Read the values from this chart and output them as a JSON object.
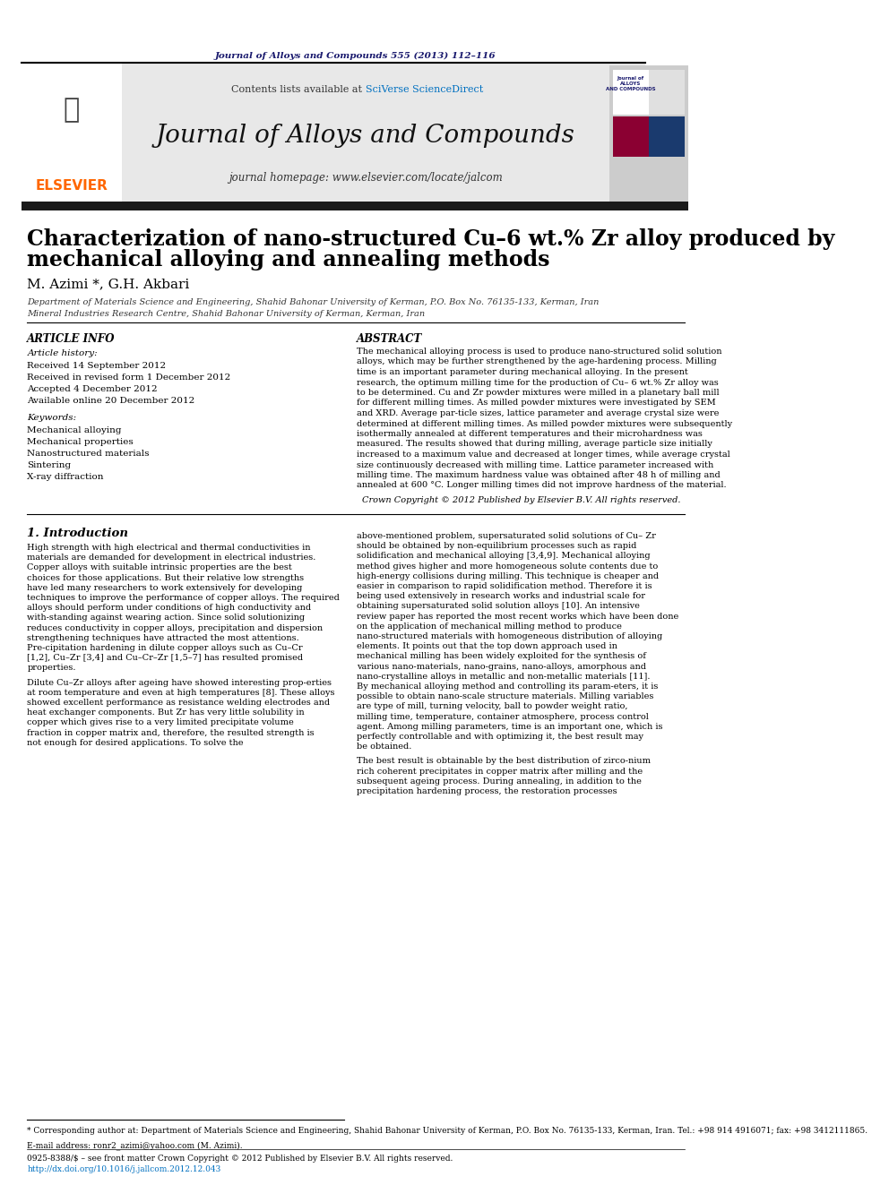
{
  "journal_ref": "Journal of Alloys and Compounds 555 (2013) 112–116",
  "journal_ref_color": "#1a1a6e",
  "contents_line": "Contents lists available at ",
  "sciverse": "SciVerse ScienceDirect",
  "sciverse_color": "#0070c0",
  "journal_title": "Journal of Alloys and Compounds",
  "journal_homepage": "journal homepage: www.elsevier.com/locate/jalcom",
  "paper_title_line1": "Characterization of nano-structured Cu–6 wt.% Zr alloy produced by",
  "paper_title_line2": "mechanical alloying and annealing methods",
  "authors": "M. Azimi *, G.H. Akbari",
  "affil1": "Department of Materials Science and Engineering, Shahid Bahonar University of Kerman, P.O. Box No. 76135-133, Kerman, Iran",
  "affil2": "Mineral Industries Research Centre, Shahid Bahonar University of Kerman, Kerman, Iran",
  "article_info_header": "ARTICLE INFO",
  "abstract_header": "ABSTRACT",
  "article_history_label": "Article history:",
  "received1": "Received 14 September 2012",
  "received2": "Received in revised form 1 December 2012",
  "accepted": "Accepted 4 December 2012",
  "available": "Available online 20 December 2012",
  "keywords_label": "Keywords:",
  "kw1": "Mechanical alloying",
  "kw2": "Mechanical properties",
  "kw3": "Nanostructured materials",
  "kw4": "Sintering",
  "kw5": "X-ray diffraction",
  "abstract_text": "The mechanical alloying process is used to produce nano-structured solid solution alloys, which may be further strengthened by the age-hardening process. Milling time is an important parameter during mechanical alloying. In the present research, the optimum milling time for the production of Cu– 6 wt.% Zr alloy was to be determined. Cu and Zr powder mixtures were milled in a planetary ball mill for different milling times. As milled powder mixtures were investigated by SEM and XRD. Average par-ticle sizes, lattice parameter and average crystal size were determined at different milling times. As milled powder mixtures were subsequently isothermally annealed at different temperatures and their microhardness was measured. The results showed that during milling, average particle size initially increased to a maximum value and decreased at longer times, while average crystal size continuously decreased with milling time. Lattice parameter increased with milling time. The maximum hardness value was obtained after 48 h of milling and annealed at 600 °C. Longer milling times did not improve hardness of the material.",
  "crown_copyright": "Crown Copyright © 2012 Published by Elsevier B.V. All rights reserved.",
  "section1_title": "1. Introduction",
  "intro_col1_para1": "High strength with high electrical and thermal conductivities in materials are demanded for development in electrical industries. Copper alloys with suitable intrinsic properties are the best choices for those applications. But their relative low strengths have led many researchers to work extensively for developing techniques to improve the performance of copper alloys. The required alloys should perform under conditions of high conductivity and with-standing against wearing action. Since solid solutionizing reduces conductivity in copper alloys, precipitation and dispersion strengthening techniques have attracted the most attentions. Pre-cipitation hardening in dilute copper alloys such as Cu–Cr [1,2], Cu–Zr [3,4] and Cu–Cr–Zr [1,5–7] has resulted promised properties.",
  "intro_col1_para2": "Dilute Cu–Zr alloys after ageing have showed interesting prop-erties at room temperature and even at high temperatures [8]. These alloys showed excellent performance as resistance welding electrodes and heat exchanger components. But Zr has very little solubility in copper which gives rise to a very limited precipitate volume fraction in copper matrix and, therefore, the resulted strength is not enough for desired applications. To solve the",
  "intro_col2_para1": "above-mentioned problem, supersaturated solid solutions of Cu– Zr should be obtained by non-equilibrium processes such as rapid solidification and mechanical alloying [3,4,9]. Mechanical alloying method gives higher and more homogeneous solute contents due to high-energy collisions during milling. This technique is cheaper and easier in comparison to rapid solidification method. Therefore it is being used extensively in research works and industrial scale for obtaining supersaturated solid solution alloys [10]. An intensive review paper has reported the most recent works which have been done on the application of mechanical milling method to produce nano-structured materials with homogeneous distribution of alloying elements. It points out that the top down approach used in mechanical milling has been widely exploited for the synthesis of various nano-materials, nano-grains, nano-alloys, amorphous and nano-crystalline alloys in metallic and non-metallic materials [11]. By mechanical alloying method and controlling its param-eters, it is possible to obtain nano-scale structure materials. Milling variables are type of mill, turning velocity, ball to powder weight ratio, milling time, temperature, container atmosphere, process control agent. Among milling parameters, time is an important one, which is perfectly controllable and with optimizing it, the best result may be obtained.",
  "intro_col2_para2": "The best result is obtainable by the best distribution of zirco-nium rich coherent precipitates in copper matrix after milling and the subsequent ageing process. During annealing, in addition to the precipitation hardening process, the restoration processes",
  "footnote_star": "* Corresponding author at: Department of Materials Science and Engineering, Shahid Bahonar University of Kerman, P.O. Box No. 76135-133, Kerman, Iran. Tel.: +98 914 4916071; fax: +98 3412111865.",
  "footnote_email": "E-mail address: ronr2_azimi@yahoo.com (M. Azimi).",
  "issn_line": "0925-8388/$ – see front matter Crown Copyright © 2012 Published by Elsevier B.V. All rights reserved.",
  "doi_line": "http://dx.doi.org/10.1016/j.jallcom.2012.12.043",
  "doi_color": "#0070c0",
  "bg_color": "#ffffff",
  "header_bg": "#e8e8e8",
  "black_bar_color": "#1a1a1a"
}
